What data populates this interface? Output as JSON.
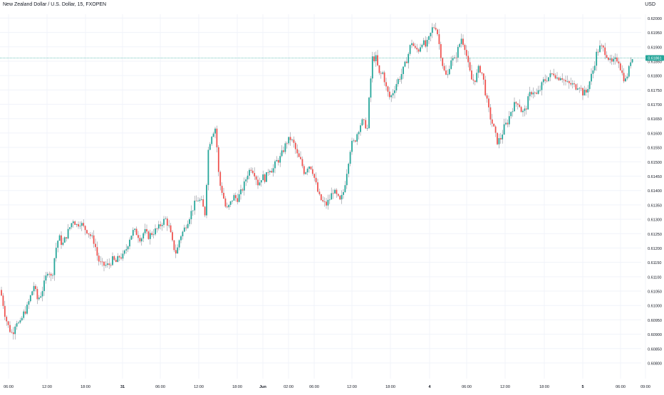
{
  "title": "New Zealand Dollar / U.S. Dollar, 15, FXOPEN",
  "currency": "USD",
  "colors": {
    "up": "#26a69a",
    "down": "#ef5350",
    "price_line": "#26a69a",
    "grid": "#f0f3fa",
    "axis_text": "#131722",
    "background": "#ffffff"
  },
  "chart_data": {
    "type": "candlestick",
    "title": "New Zealand Dollar / U.S. Dollar, 15, FXOPEN",
    "xlabel": "",
    "ylabel": "USD",
    "ylim": [
      0.608,
      0.6205
    ],
    "y_ticks": [
      "0.62000",
      "0.61950",
      "0.61900",
      "0.61850",
      "0.61800",
      "0.61750",
      "0.61700",
      "0.61650",
      "0.61600",
      "0.61550",
      "0.61500",
      "0.61450",
      "0.61400",
      "0.61350",
      "0.61300",
      "0.61250",
      "0.61200",
      "0.61150",
      "0.61100",
      "0.61050",
      "0.61000",
      "0.60950",
      "0.60900",
      "0.60850",
      "0.60800"
    ],
    "x_ticks": [
      "06:00",
      "12:00",
      "18:00",
      "31",
      "06:00",
      "12:00",
      "18:00",
      "Jun",
      "02:00",
      "06:00",
      "12:00",
      "18:00",
      "4",
      "06:00",
      "12:00",
      "18:00",
      "5",
      "06:00",
      "09:00"
    ],
    "bold_x_ticks": [
      "31",
      "Jun",
      "4",
      "5"
    ],
    "current_price": "0.61861",
    "grid": true,
    "path_points": [
      [
        0,
        0.6107
      ],
      [
        5,
        0.6103
      ],
      [
        10,
        0.6096
      ],
      [
        15,
        0.6092
      ],
      [
        20,
        0.609
      ],
      [
        25,
        0.6095
      ],
      [
        30,
        0.6093
      ],
      [
        35,
        0.6097
      ],
      [
        40,
        0.6099
      ],
      [
        45,
        0.6103
      ],
      [
        50,
        0.6107
      ],
      [
        55,
        0.6102
      ],
      [
        60,
        0.6104
      ],
      [
        65,
        0.6108
      ],
      [
        70,
        0.6113
      ],
      [
        75,
        0.6109
      ],
      [
        80,
        0.6119
      ],
      [
        85,
        0.6124
      ],
      [
        90,
        0.6121
      ],
      [
        95,
        0.6124
      ],
      [
        100,
        0.6127
      ],
      [
        105,
        0.613
      ],
      [
        110,
        0.6128
      ],
      [
        115,
        0.6129
      ],
      [
        120,
        0.6127
      ],
      [
        125,
        0.6126
      ],
      [
        130,
        0.6124
      ],
      [
        135,
        0.6122
      ],
      [
        140,
        0.6116
      ],
      [
        145,
        0.6114
      ],
      [
        150,
        0.6114
      ],
      [
        155,
        0.6114
      ],
      [
        160,
        0.6116
      ],
      [
        165,
        0.6115
      ],
      [
        170,
        0.6117
      ],
      [
        175,
        0.6117
      ],
      [
        180,
        0.612
      ],
      [
        185,
        0.6124
      ],
      [
        190,
        0.6126
      ],
      [
        195,
        0.6125
      ],
      [
        200,
        0.6123
      ],
      [
        205,
        0.6126
      ],
      [
        210,
        0.6124
      ],
      [
        215,
        0.6125
      ],
      [
        220,
        0.6126
      ],
      [
        225,
        0.6127
      ],
      [
        230,
        0.6129
      ],
      [
        235,
        0.613
      ],
      [
        240,
        0.6127
      ],
      [
        245,
        0.6121
      ],
      [
        250,
        0.6118
      ],
      [
        255,
        0.6124
      ],
      [
        260,
        0.6126
      ],
      [
        265,
        0.6129
      ],
      [
        270,
        0.6132
      ],
      [
        275,
        0.6135
      ],
      [
        280,
        0.6137
      ],
      [
        285,
        0.6136
      ],
      [
        290,
        0.6132
      ],
      [
        295,
        0.6155
      ],
      [
        300,
        0.616
      ],
      [
        305,
        0.6162
      ],
      [
        310,
        0.6143
      ],
      [
        315,
        0.6139
      ],
      [
        320,
        0.6133
      ],
      [
        325,
        0.6135
      ],
      [
        330,
        0.6138
      ],
      [
        335,
        0.6137
      ],
      [
        340,
        0.6139
      ],
      [
        345,
        0.6142
      ],
      [
        350,
        0.6146
      ],
      [
        355,
        0.6148
      ],
      [
        360,
        0.6146
      ],
      [
        365,
        0.6142
      ],
      [
        370,
        0.6145
      ],
      [
        375,
        0.6144
      ],
      [
        380,
        0.6148
      ],
      [
        385,
        0.6147
      ],
      [
        390,
        0.615
      ],
      [
        395,
        0.6151
      ],
      [
        400,
        0.6154
      ],
      [
        405,
        0.6157
      ],
      [
        410,
        0.6158
      ],
      [
        415,
        0.6156
      ],
      [
        420,
        0.6152
      ],
      [
        425,
        0.615
      ],
      [
        430,
        0.6146
      ],
      [
        435,
        0.6149
      ],
      [
        440,
        0.6148
      ],
      [
        445,
        0.6143
      ],
      [
        450,
        0.6138
      ],
      [
        455,
        0.6136
      ],
      [
        460,
        0.6135
      ],
      [
        465,
        0.6137
      ],
      [
        470,
        0.614
      ],
      [
        475,
        0.6138
      ],
      [
        480,
        0.6136
      ],
      [
        485,
        0.614
      ],
      [
        490,
        0.6148
      ],
      [
        495,
        0.6156
      ],
      [
        500,
        0.6157
      ],
      [
        505,
        0.6161
      ],
      [
        510,
        0.6164
      ],
      [
        515,
        0.6163
      ],
      [
        519,
        0.6161
      ],
      [
        520,
        0.617
      ],
      [
        525,
        0.6186
      ],
      [
        530,
        0.6186
      ],
      [
        535,
        0.618
      ],
      [
        540,
        0.6181
      ],
      [
        545,
        0.6175
      ],
      [
        550,
        0.6172
      ],
      [
        555,
        0.6175
      ],
      [
        560,
        0.6178
      ],
      [
        565,
        0.618
      ],
      [
        570,
        0.6183
      ],
      [
        575,
        0.6187
      ],
      [
        580,
        0.6192
      ],
      [
        585,
        0.6189
      ],
      [
        590,
        0.6189
      ],
      [
        595,
        0.6192
      ],
      [
        600,
        0.619
      ],
      [
        605,
        0.6193
      ],
      [
        610,
        0.6197
      ],
      [
        615,
        0.6197
      ],
      [
        620,
        0.6189
      ],
      [
        625,
        0.6182
      ],
      [
        630,
        0.6179
      ],
      [
        635,
        0.6186
      ],
      [
        640,
        0.6185
      ],
      [
        645,
        0.6189
      ],
      [
        650,
        0.6193
      ],
      [
        655,
        0.619
      ],
      [
        660,
        0.6183
      ],
      [
        665,
        0.6178
      ],
      [
        670,
        0.6179
      ],
      [
        675,
        0.6183
      ],
      [
        680,
        0.618
      ],
      [
        685,
        0.6172
      ],
      [
        690,
        0.6166
      ],
      [
        695,
        0.6162
      ],
      [
        700,
        0.6157
      ],
      [
        705,
        0.6158
      ],
      [
        710,
        0.6162
      ],
      [
        715,
        0.6164
      ],
      [
        720,
        0.6168
      ],
      [
        725,
        0.617
      ],
      [
        730,
        0.6171
      ],
      [
        735,
        0.6167
      ],
      [
        740,
        0.6168
      ],
      [
        745,
        0.6173
      ],
      [
        750,
        0.6175
      ],
      [
        755,
        0.6173
      ],
      [
        760,
        0.6175
      ],
      [
        765,
        0.6178
      ],
      [
        770,
        0.6179
      ],
      [
        775,
        0.618
      ],
      [
        780,
        0.6181
      ],
      [
        785,
        0.6179
      ],
      [
        790,
        0.618
      ],
      [
        795,
        0.6178
      ],
      [
        800,
        0.6177
      ],
      [
        805,
        0.6177
      ],
      [
        810,
        0.6176
      ],
      [
        815,
        0.6177
      ],
      [
        820,
        0.6174
      ],
      [
        825,
        0.6174
      ],
      [
        830,
        0.6178
      ],
      [
        835,
        0.6182
      ],
      [
        840,
        0.6188
      ],
      [
        845,
        0.619
      ],
      [
        850,
        0.6189
      ],
      [
        855,
        0.6187
      ],
      [
        860,
        0.6184
      ],
      [
        865,
        0.6185
      ],
      [
        870,
        0.6186
      ],
      [
        875,
        0.6181
      ],
      [
        880,
        0.6178
      ],
      [
        885,
        0.6182
      ],
      [
        888,
        0.6186
      ]
    ]
  }
}
